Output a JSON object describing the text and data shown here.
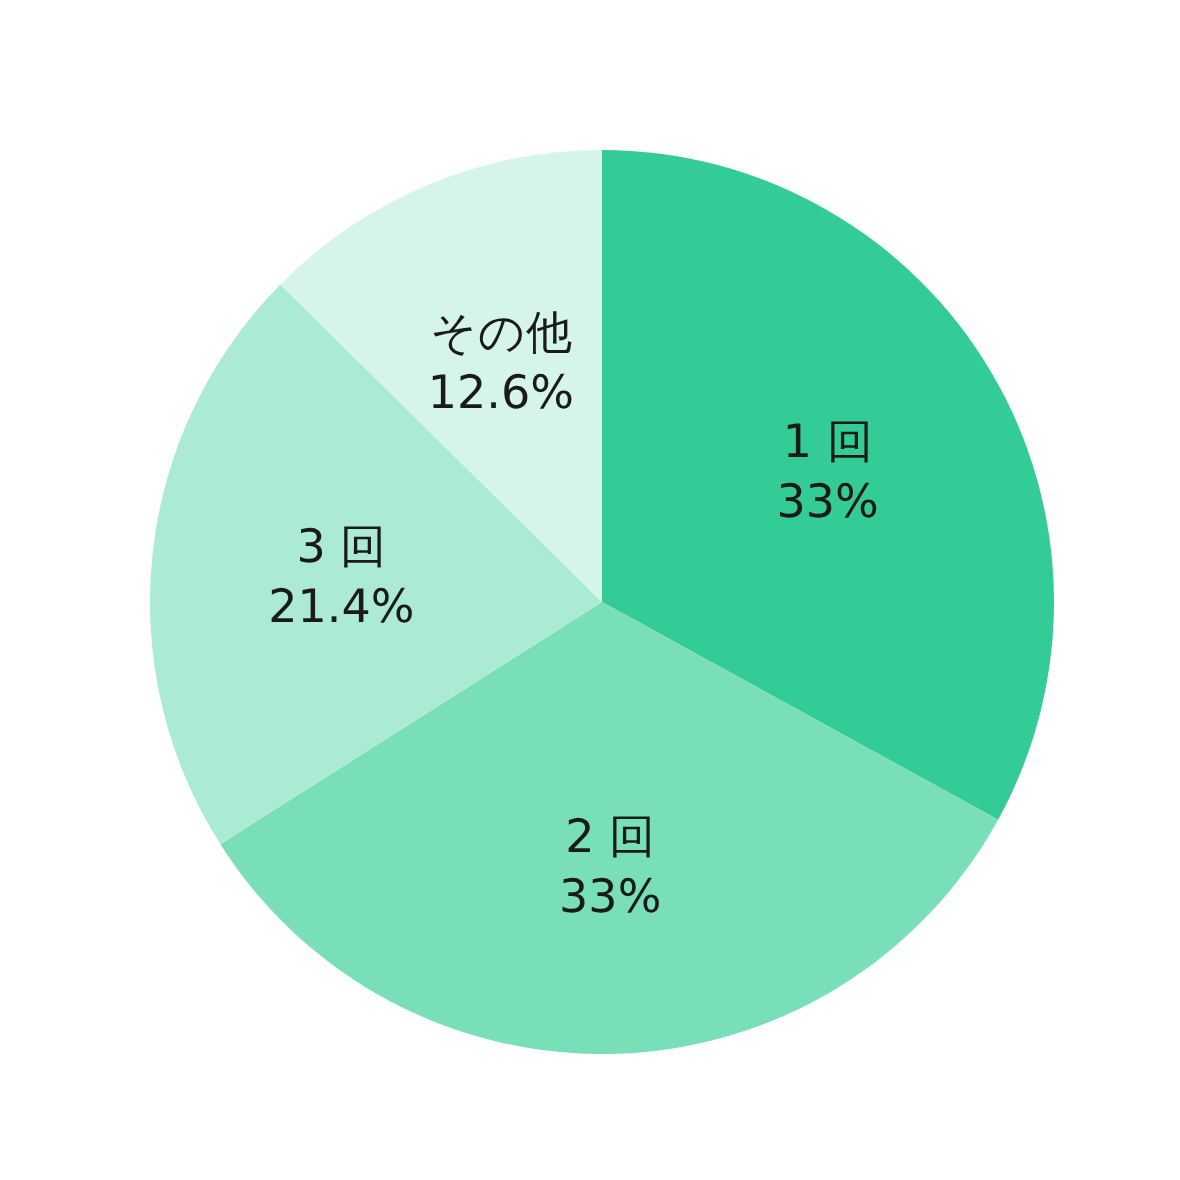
{
  "chart_data": {
    "type": "pie",
    "categories": [
      "1 回",
      "2 回",
      "3 回",
      "その他"
    ],
    "values": [
      33,
      33,
      21.4,
      12.6
    ],
    "value_labels": [
      "33%",
      "33%",
      "21.4%",
      "12.6%"
    ],
    "colors": [
      "#33cc96",
      "#78dfb8",
      "#abebd3",
      "#d4f5e8"
    ]
  }
}
